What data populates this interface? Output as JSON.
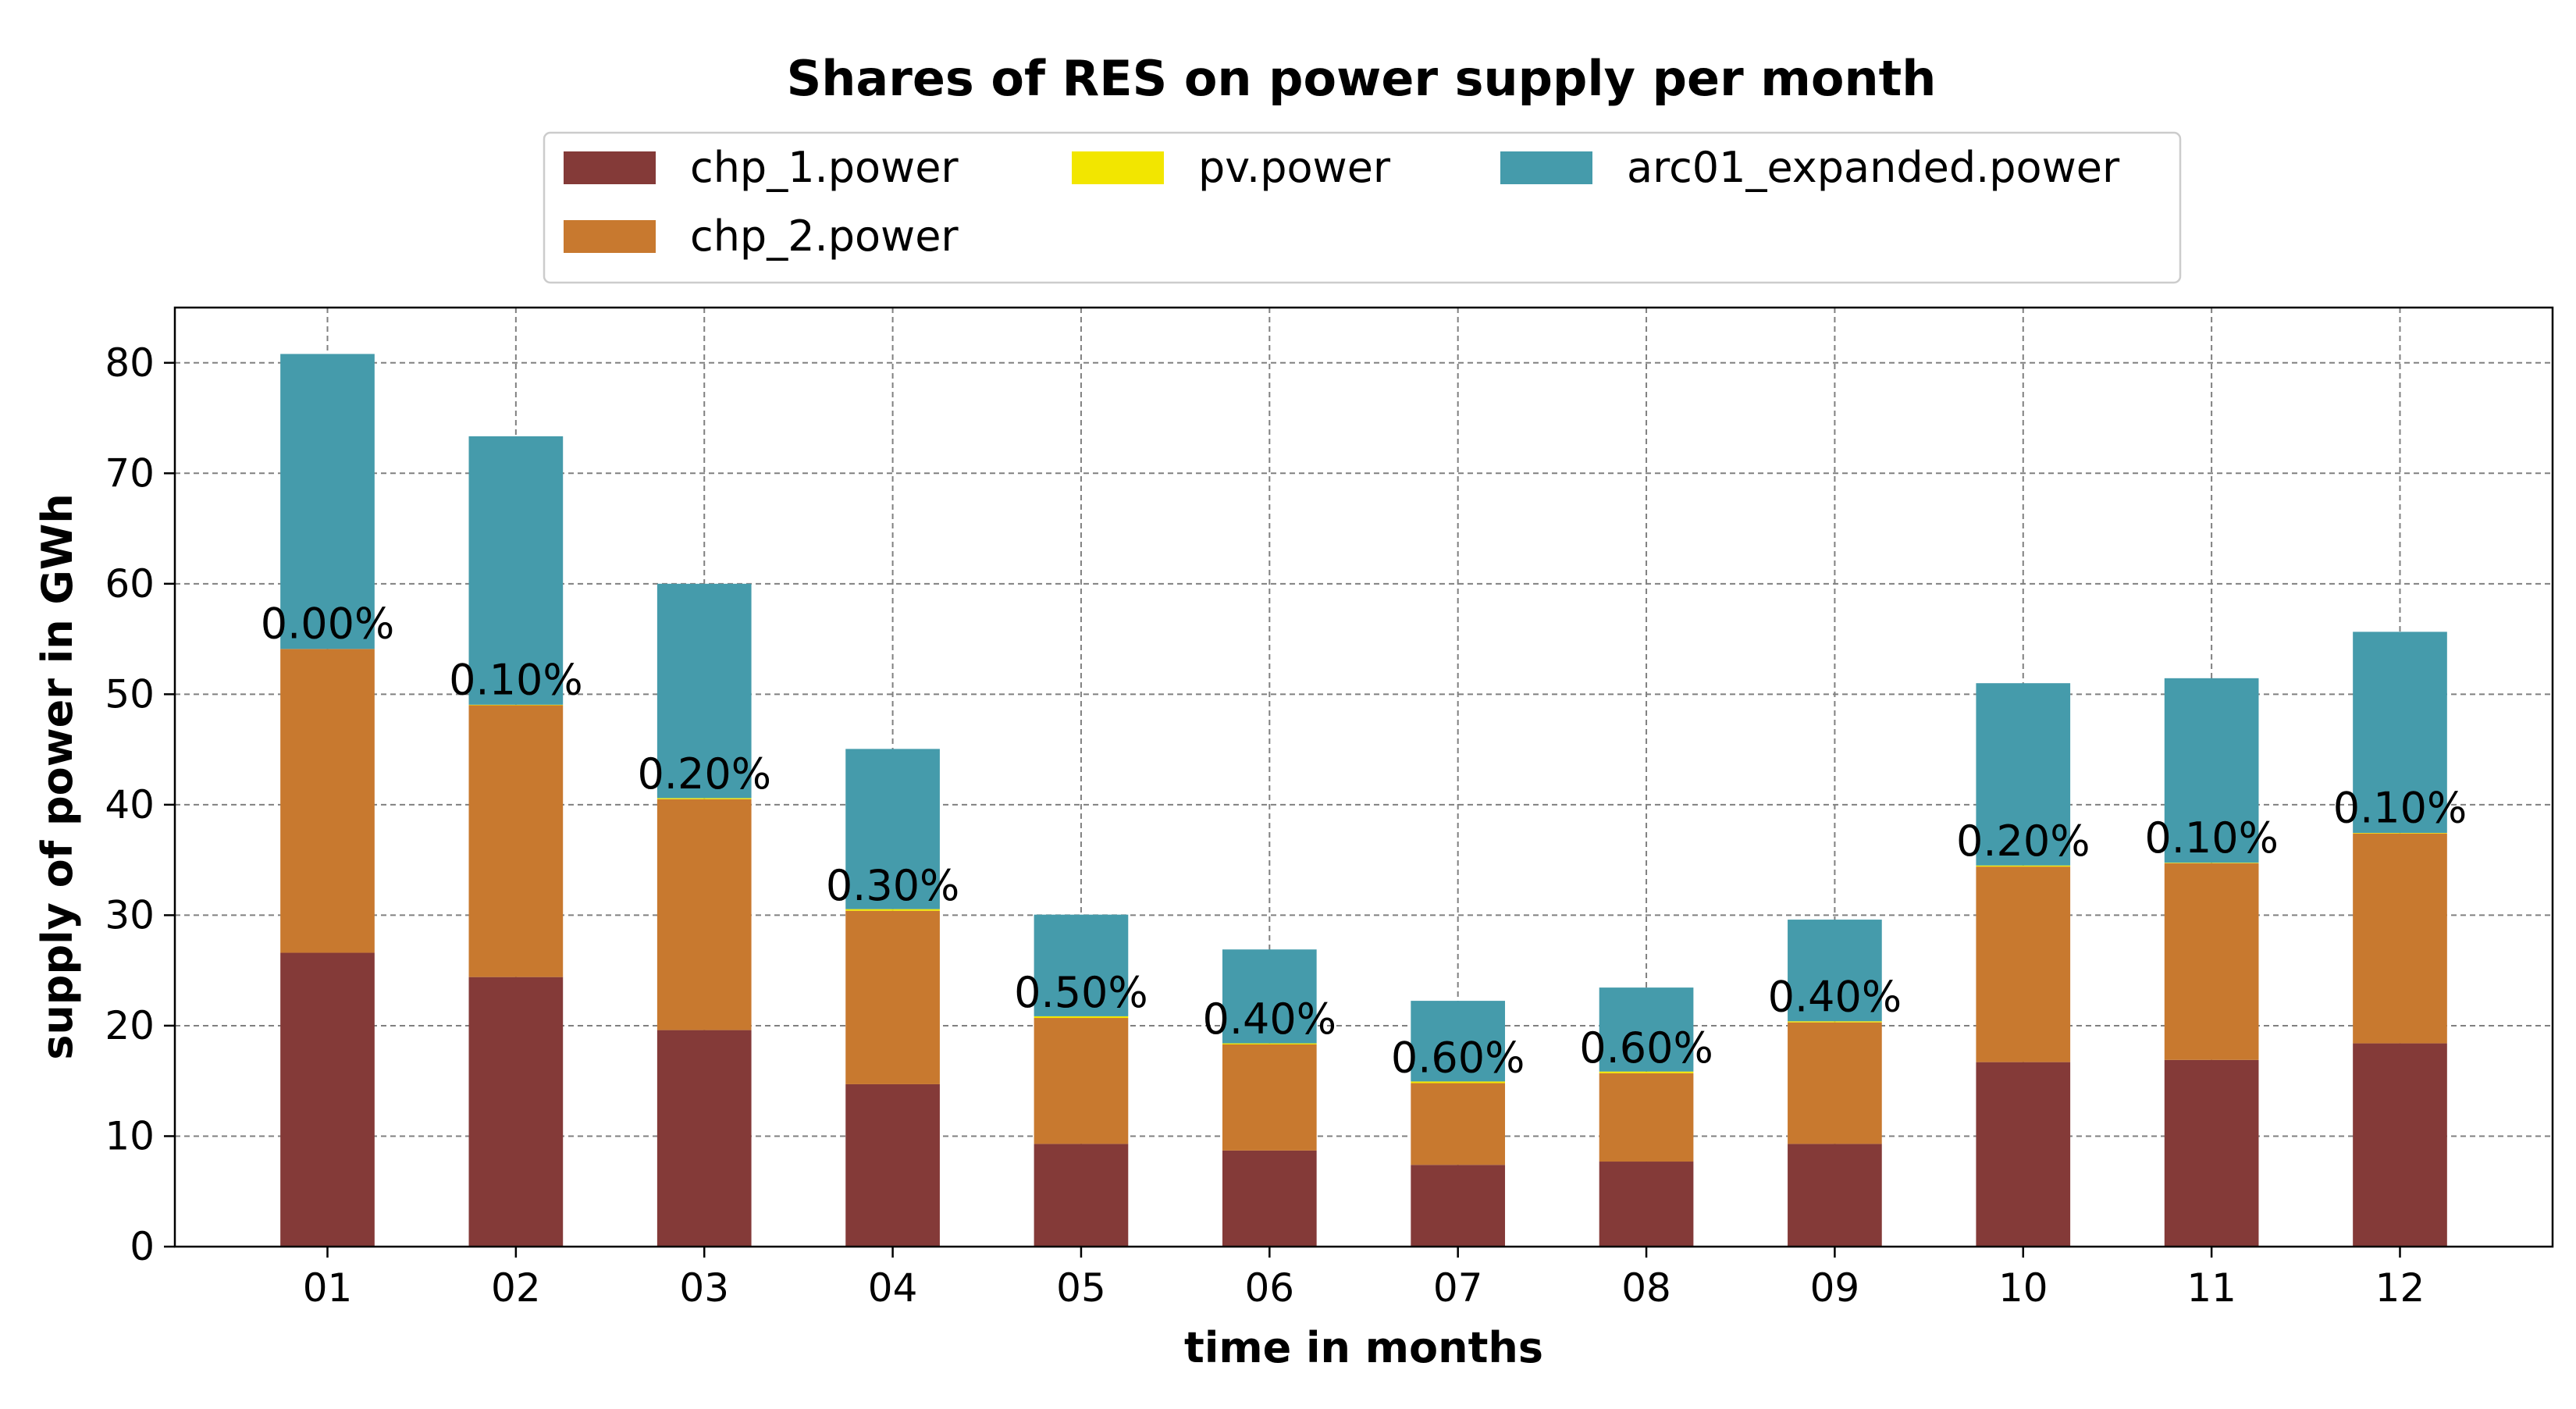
{
  "chart_data": {
    "type": "bar",
    "stacked": true,
    "title": "Shares of RES on power supply per month",
    "xlabel": "time in months",
    "ylabel": "supply of power in GWh",
    "ylim": [
      0,
      85
    ],
    "yticks": [
      0,
      10,
      20,
      30,
      40,
      50,
      60,
      70,
      80
    ],
    "grid": true,
    "legend_position": "top-center",
    "categories": [
      "01",
      "02",
      "03",
      "04",
      "05",
      "06",
      "07",
      "08",
      "09",
      "10",
      "11",
      "12"
    ],
    "series": [
      {
        "name": "chp_1.power",
        "color": "#843A38",
        "values": [
          26.6,
          24.4,
          19.6,
          14.7,
          9.3,
          8.7,
          7.4,
          7.7,
          9.3,
          16.7,
          16.9,
          18.4
        ]
      },
      {
        "name": "chp_2.power",
        "color": "#C8792F",
        "values": [
          27.5,
          24.6,
          20.9,
          15.7,
          11.4,
          9.6,
          7.4,
          8.0,
          11.0,
          17.7,
          17.8,
          19.0
        ]
      },
      {
        "name": "pv.power",
        "color": "#F2E600",
        "values": [
          0.0,
          0.05,
          0.1,
          0.15,
          0.15,
          0.1,
          0.15,
          0.15,
          0.1,
          0.1,
          0.05,
          0.05
        ]
      },
      {
        "name": "arc01_expanded.power",
        "color": "#459BAB",
        "values": [
          26.7,
          24.3,
          19.4,
          14.5,
          9.2,
          8.5,
          7.3,
          7.6,
          9.2,
          16.5,
          16.7,
          18.2
        ]
      }
    ],
    "data_labels": [
      "0.00%",
      "0.10%",
      "0.20%",
      "0.30%",
      "0.50%",
      "0.40%",
      "0.60%",
      "0.60%",
      "0.40%",
      "0.20%",
      "0.10%",
      "0.10%"
    ]
  }
}
